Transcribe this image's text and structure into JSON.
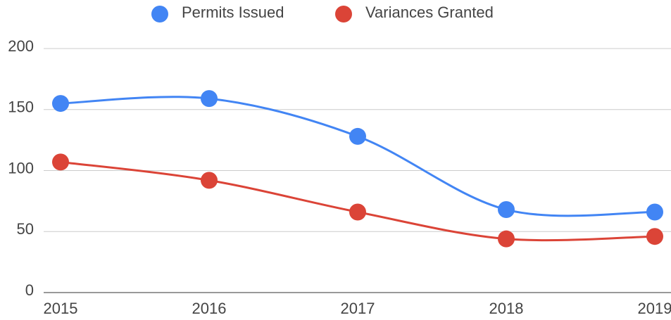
{
  "chart_data": {
    "type": "line",
    "categories": [
      "2015",
      "2016",
      "2017",
      "2018",
      "2019"
    ],
    "series": [
      {
        "name": "Permits Issued",
        "color": "#4285f4",
        "values": [
          155,
          159,
          128,
          68,
          66
        ]
      },
      {
        "name": "Variances Granted",
        "color": "#db4437",
        "values": [
          107,
          92,
          66,
          44,
          46
        ]
      }
    ],
    "ylim": [
      0,
      200
    ],
    "yticks": [
      0,
      50,
      100,
      150,
      200
    ],
    "grid": true,
    "legend": "top",
    "smooth": true
  }
}
